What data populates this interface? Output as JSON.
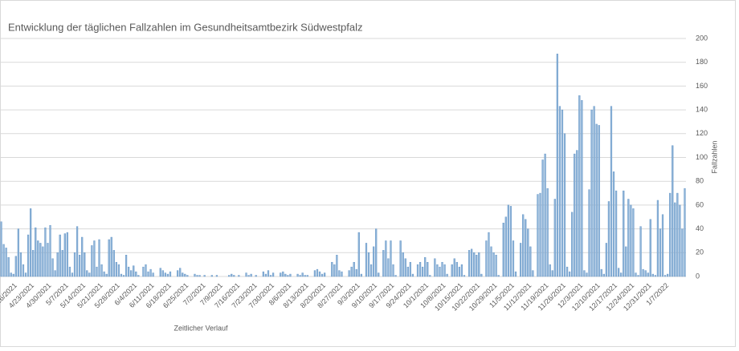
{
  "chart_data": {
    "type": "bar",
    "title": "Entwicklung der täglichen Fallzahlen im Gesundheitsamtbezirk Südwestpfalz",
    "x_label": "Zeitlicher Verlauf",
    "y_label": "Fallzahlen",
    "color": "#8fb4d8",
    "ylim": [
      0,
      200
    ],
    "yticks": [
      0,
      20,
      40,
      60,
      80,
      100,
      120,
      140,
      160,
      180,
      200
    ],
    "grid": true,
    "y_axis_side": "right",
    "categories": [
      null,
      null,
      null,
      null,
      null,
      null,
      "4/16/2021",
      null,
      null,
      null,
      null,
      null,
      null,
      "4/23/2021",
      null,
      null,
      null,
      null,
      null,
      null,
      "4/30/2021",
      null,
      null,
      null,
      null,
      null,
      null,
      "5/7/2021",
      null,
      null,
      null,
      null,
      null,
      null,
      "5/14/2021",
      null,
      null,
      null,
      null,
      null,
      null,
      "5/21/2021",
      null,
      null,
      null,
      null,
      null,
      null,
      "5/28/2021",
      null,
      null,
      null,
      null,
      null,
      null,
      "6/4/2021",
      null,
      null,
      null,
      null,
      null,
      null,
      "6/11/2021",
      null,
      null,
      null,
      null,
      null,
      null,
      "6/18/2021",
      null,
      null,
      null,
      null,
      null,
      null,
      "6/25/2021",
      null,
      null,
      null,
      null,
      null,
      null,
      "7/2/2021",
      null,
      null,
      null,
      null,
      null,
      null,
      "7/9/2021",
      null,
      null,
      null,
      null,
      null,
      null,
      "7/16/2021",
      null,
      null,
      null,
      null,
      null,
      null,
      "7/23/2021",
      null,
      null,
      null,
      null,
      null,
      null,
      "7/30/2021",
      null,
      null,
      null,
      null,
      null,
      null,
      "8/6/2021",
      null,
      null,
      null,
      null,
      null,
      null,
      "8/13/2021",
      null,
      null,
      null,
      null,
      null,
      null,
      "8/20/2021",
      null,
      null,
      null,
      null,
      null,
      null,
      "8/27/2021",
      null,
      null,
      null,
      null,
      null,
      null,
      "9/3/2021",
      null,
      null,
      null,
      null,
      null,
      null,
      "9/10/2021",
      null,
      null,
      null,
      null,
      null,
      null,
      "9/17/2021",
      null,
      null,
      null,
      null,
      null,
      null,
      "9/24/2021",
      null,
      null,
      null,
      null,
      null,
      null,
      "10/1/2021",
      null,
      null,
      null,
      null,
      null,
      null,
      "10/8/2021",
      null,
      null,
      null,
      null,
      null,
      null,
      "10/15/2021",
      null,
      null,
      null,
      null,
      null,
      null,
      "10/22/2021",
      null,
      null,
      null,
      null,
      null,
      null,
      "10/29/2021",
      null,
      null,
      null,
      null,
      null,
      null,
      "11/5/2021",
      null,
      null,
      null,
      null,
      null,
      null,
      "11/12/2021",
      null,
      null,
      null,
      null,
      null,
      null,
      "11/19/2021",
      null,
      null,
      null,
      null,
      null,
      null,
      "11/26/2021",
      null,
      null,
      null,
      null,
      null,
      null,
      "12/3/2021",
      null,
      null,
      null,
      null,
      null,
      null,
      "12/10/2021",
      null,
      null,
      null,
      null,
      null,
      null,
      "12/17/2021",
      null,
      null,
      null,
      null,
      null,
      null,
      "12/24/2021",
      null,
      null,
      null,
      null,
      null,
      null,
      "12/31/2021",
      null,
      null,
      null,
      null,
      null,
      null,
      "1/7/2022",
      null,
      null,
      null,
      null,
      null,
      null,
      null
    ],
    "values": [
      46,
      27,
      24,
      16,
      3,
      2,
      17,
      40,
      20,
      10,
      3,
      35,
      57,
      22,
      41,
      30,
      28,
      25,
      41,
      28,
      43,
      15,
      5,
      20,
      35,
      22,
      36,
      37,
      8,
      3,
      20,
      42,
      18,
      33,
      20,
      5,
      3,
      26,
      30,
      8,
      31,
      10,
      4,
      2,
      31,
      33,
      22,
      12,
      10,
      2,
      1,
      18,
      8,
      5,
      9,
      4,
      1,
      0,
      8,
      10,
      4,
      6,
      3,
      0,
      0,
      7,
      5,
      3,
      2,
      4,
      0,
      0,
      5,
      7,
      3,
      2,
      1,
      0,
      0,
      2,
      1,
      1,
      0,
      1,
      0,
      0,
      1,
      0,
      1,
      0,
      0,
      0,
      0,
      1,
      2,
      1,
      0,
      1,
      0,
      0,
      3,
      1,
      2,
      0,
      1,
      0,
      0,
      4,
      2,
      5,
      1,
      3,
      0,
      0,
      3,
      4,
      2,
      1,
      2,
      0,
      0,
      2,
      1,
      3,
      1,
      1,
      0,
      0,
      5,
      6,
      4,
      2,
      3,
      0,
      0,
      12,
      10,
      18,
      5,
      4,
      0,
      0,
      5,
      8,
      12,
      6,
      37,
      2,
      0,
      28,
      20,
      10,
      25,
      40,
      3,
      0,
      22,
      30,
      15,
      30,
      10,
      1,
      0,
      30,
      20,
      15,
      8,
      12,
      2,
      0,
      10,
      12,
      8,
      16,
      12,
      1,
      0,
      15,
      10,
      8,
      12,
      10,
      2,
      0,
      10,
      15,
      12,
      8,
      10,
      1,
      0,
      22,
      23,
      20,
      18,
      20,
      2,
      0,
      30,
      37,
      25,
      20,
      18,
      1,
      0,
      45,
      50,
      60,
      59,
      30,
      4,
      0,
      28,
      52,
      48,
      40,
      25,
      5,
      0,
      69,
      70,
      98,
      103,
      74,
      10,
      5,
      65,
      187,
      143,
      140,
      120,
      8,
      4,
      54,
      103,
      106,
      152,
      148,
      5,
      3,
      73,
      140,
      143,
      128,
      127,
      6,
      2,
      28,
      63,
      143,
      88,
      72,
      7,
      3,
      72,
      25,
      65,
      60,
      57,
      3,
      1,
      42,
      6,
      5,
      3,
      48,
      2,
      1,
      64,
      40,
      52,
      1,
      2,
      70,
      110,
      62,
      70,
      60,
      40,
      74
    ]
  }
}
